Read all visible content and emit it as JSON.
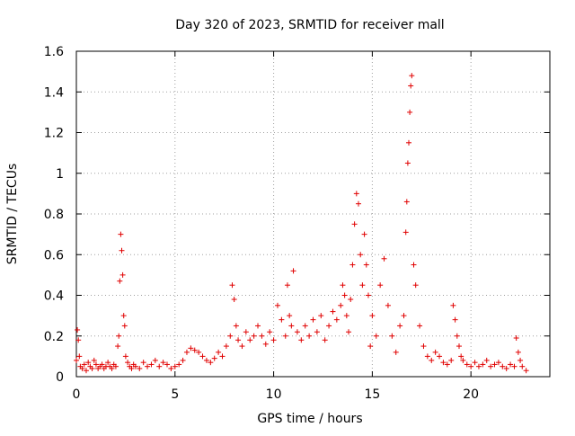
{
  "chart_data": {
    "type": "scatter",
    "title": "Day 320 of 2023, SRMTID for receiver mall",
    "xlabel": "GPS time / hours",
    "ylabel": "SRMTID / TECUs",
    "xlim": [
      0,
      24
    ],
    "ylim": [
      0,
      1.6
    ],
    "xticks": [
      0,
      5,
      10,
      15,
      20
    ],
    "yticks": [
      0,
      0.2,
      0.4,
      0.6,
      0.8,
      1,
      1.2,
      1.4,
      1.6
    ],
    "ytick_labels": [
      "0",
      "0.2",
      "0.4",
      "0.6",
      "0.8",
      "1",
      "1.2",
      "1.4",
      "1.6"
    ],
    "xtick_labels": [
      "0",
      "5",
      "10",
      "15",
      "20"
    ],
    "grid": true,
    "marker": "plus",
    "color": "#e00000",
    "series": [
      {
        "name": "SRMTID",
        "x": [
          0.0,
          0.05,
          0.1,
          0.15,
          0.2,
          0.3,
          0.4,
          0.5,
          0.6,
          0.7,
          0.8,
          0.9,
          1.0,
          1.1,
          1.2,
          1.3,
          1.4,
          1.5,
          1.6,
          1.7,
          1.8,
          1.9,
          2.0,
          2.1,
          2.15,
          2.2,
          2.25,
          2.3,
          2.35,
          2.4,
          2.45,
          2.5,
          2.6,
          2.7,
          2.8,
          2.9,
          3.0,
          3.2,
          3.4,
          3.6,
          3.8,
          4.0,
          4.2,
          4.4,
          4.6,
          4.8,
          5.0,
          5.2,
          5.4,
          5.6,
          5.8,
          6.0,
          6.2,
          6.4,
          6.6,
          6.8,
          7.0,
          7.2,
          7.4,
          7.6,
          7.8,
          7.9,
          8.0,
          8.1,
          8.2,
          8.4,
          8.6,
          8.8,
          9.0,
          9.2,
          9.4,
          9.6,
          9.8,
          10.0,
          10.2,
          10.4,
          10.6,
          10.7,
          10.8,
          10.9,
          11.0,
          11.2,
          11.4,
          11.6,
          11.8,
          12.0,
          12.2,
          12.4,
          12.6,
          12.8,
          13.0,
          13.2,
          13.4,
          13.5,
          13.6,
          13.7,
          13.8,
          13.9,
          14.0,
          14.1,
          14.2,
          14.3,
          14.4,
          14.5,
          14.6,
          14.7,
          14.8,
          14.9,
          15.0,
          15.2,
          15.4,
          15.6,
          15.8,
          16.0,
          16.2,
          16.4,
          16.6,
          16.7,
          16.75,
          16.8,
          16.85,
          16.9,
          16.95,
          17.0,
          17.1,
          17.2,
          17.4,
          17.6,
          17.8,
          18.0,
          18.2,
          18.4,
          18.6,
          18.8,
          19.0,
          19.1,
          19.2,
          19.3,
          19.4,
          19.5,
          19.6,
          19.8,
          20.0,
          20.2,
          20.4,
          20.6,
          20.8,
          21.0,
          21.2,
          21.4,
          21.6,
          21.8,
          22.0,
          22.2,
          22.3,
          22.4,
          22.5,
          22.6,
          22.8
        ],
        "y": [
          0.08,
          0.23,
          0.18,
          0.1,
          0.05,
          0.04,
          0.06,
          0.03,
          0.07,
          0.05,
          0.04,
          0.08,
          0.06,
          0.04,
          0.05,
          0.06,
          0.04,
          0.05,
          0.07,
          0.05,
          0.04,
          0.06,
          0.05,
          0.15,
          0.2,
          0.47,
          0.7,
          0.62,
          0.5,
          0.3,
          0.25,
          0.1,
          0.07,
          0.05,
          0.04,
          0.06,
          0.05,
          0.04,
          0.07,
          0.05,
          0.06,
          0.08,
          0.05,
          0.07,
          0.06,
          0.04,
          0.05,
          0.06,
          0.08,
          0.12,
          0.14,
          0.13,
          0.12,
          0.1,
          0.08,
          0.07,
          0.09,
          0.12,
          0.1,
          0.15,
          0.2,
          0.45,
          0.38,
          0.25,
          0.18,
          0.15,
          0.22,
          0.18,
          0.2,
          0.25,
          0.2,
          0.16,
          0.22,
          0.18,
          0.35,
          0.28,
          0.2,
          0.45,
          0.3,
          0.25,
          0.52,
          0.22,
          0.18,
          0.25,
          0.2,
          0.28,
          0.22,
          0.3,
          0.18,
          0.25,
          0.32,
          0.28,
          0.35,
          0.45,
          0.4,
          0.3,
          0.22,
          0.38,
          0.55,
          0.75,
          0.9,
          0.85,
          0.6,
          0.45,
          0.7,
          0.55,
          0.4,
          0.15,
          0.3,
          0.2,
          0.45,
          0.58,
          0.35,
          0.2,
          0.12,
          0.25,
          0.3,
          0.71,
          0.86,
          1.05,
          1.15,
          1.3,
          1.43,
          1.48,
          0.55,
          0.45,
          0.25,
          0.15,
          0.1,
          0.08,
          0.12,
          0.1,
          0.07,
          0.06,
          0.08,
          0.35,
          0.28,
          0.2,
          0.15,
          0.1,
          0.08,
          0.06,
          0.05,
          0.07,
          0.05,
          0.06,
          0.08,
          0.05,
          0.06,
          0.07,
          0.05,
          0.04,
          0.06,
          0.05,
          0.19,
          0.12,
          0.08,
          0.05,
          0.03
        ]
      }
    ]
  }
}
